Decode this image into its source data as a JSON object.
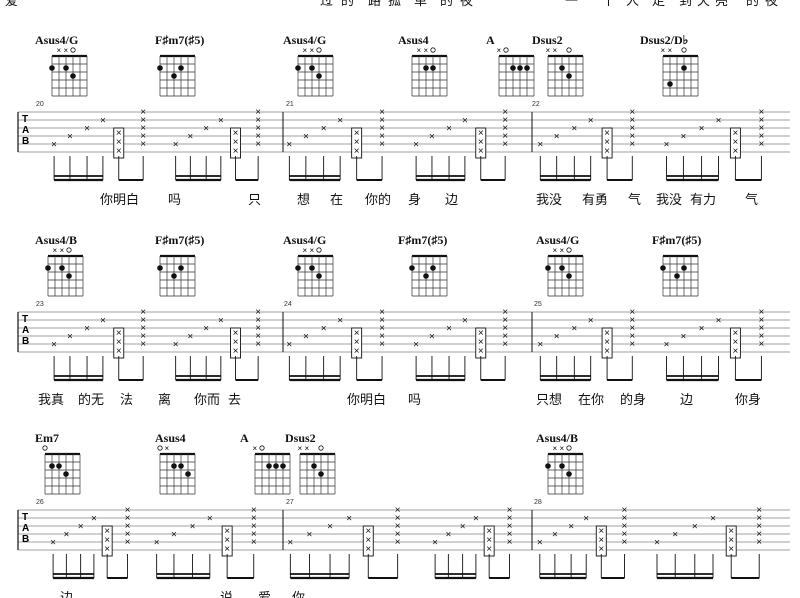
{
  "top_lyrics": [
    "爱",
    "过",
    "的",
    "路",
    "孤",
    "单",
    "的",
    "夜",
    "一",
    "个",
    "人",
    "走",
    "到",
    "天",
    "亮",
    "的",
    "夜"
  ],
  "systems": [
    {
      "tab_label": [
        "T",
        "A",
        "B"
      ],
      "chords": [
        "Asus4/G",
        "F♯m7(♯5)",
        "Asus4/G",
        "Asus4",
        "A",
        "Dsus2",
        "Dsus2/D♭"
      ],
      "measures": [
        "20",
        "21",
        "22"
      ],
      "lyrics": [
        "你明白",
        "吗",
        "只",
        "想",
        "在",
        "你的",
        "身",
        "边",
        "我没",
        "有勇",
        "气",
        "我没",
        "有力",
        "气"
      ]
    },
    {
      "tab_label": [
        "T",
        "A",
        "B"
      ],
      "chords": [
        "Asus4/B",
        "F♯m7(♯5)",
        "Asus4/G",
        "F♯m7(♯5)",
        "Asus4/G",
        "F♯m7(♯5)"
      ],
      "measures": [
        "23",
        "24",
        "25"
      ],
      "lyrics": [
        "我真",
        "的无",
        "法",
        "离",
        "你而",
        "去",
        "你明白",
        "吗",
        "只想",
        "在你",
        "的身",
        "边",
        "你身"
      ]
    },
    {
      "tab_label": [
        "T",
        "A",
        "B"
      ],
      "chords": [
        "Em7",
        "Asus4",
        "A",
        "Dsus2",
        "Asus4/B"
      ],
      "measures": [
        "26",
        "27",
        "28"
      ],
      "lyrics": [
        "边",
        "说",
        "爱",
        "你"
      ]
    }
  ]
}
